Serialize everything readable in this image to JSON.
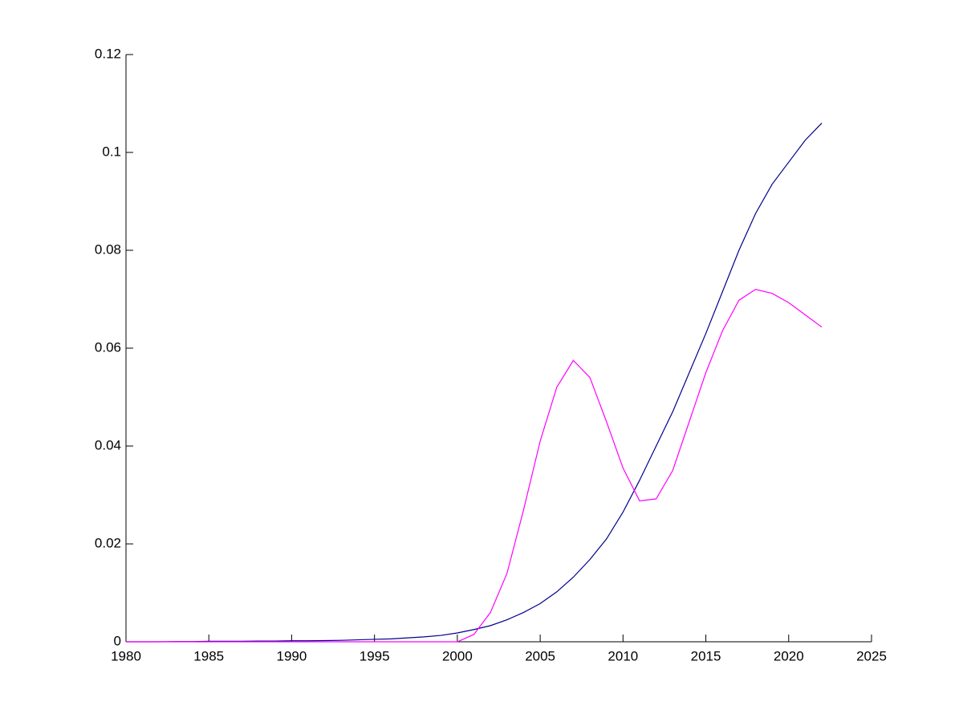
{
  "chart_data": {
    "type": "line",
    "x": [
      1980,
      1981,
      1982,
      1983,
      1984,
      1985,
      1986,
      1987,
      1988,
      1989,
      1990,
      1991,
      1992,
      1993,
      1994,
      1995,
      1996,
      1997,
      1998,
      1999,
      2000,
      2001,
      2002,
      2003,
      2004,
      2005,
      2006,
      2007,
      2008,
      2009,
      2010,
      2011,
      2012,
      2013,
      2014,
      2015,
      2016,
      2017,
      2018,
      2019,
      2020,
      2021,
      2022
    ],
    "series": [
      {
        "color": "#00008b",
        "values": [
          0,
          0,
          0,
          5e-05,
          5e-05,
          0.0001,
          0.0001,
          0.0001,
          0.00015,
          0.00015,
          0.0002,
          0.0002,
          0.00025,
          0.0003,
          0.0004,
          0.0005,
          0.0006,
          0.0008,
          0.001,
          0.0013,
          0.0018,
          0.0025,
          0.0033,
          0.0045,
          0.006,
          0.0078,
          0.0102,
          0.0132,
          0.0168,
          0.021,
          0.0265,
          0.033,
          0.04,
          0.047,
          0.055,
          0.063,
          0.0715,
          0.08,
          0.0875,
          0.0935,
          0.098,
          0.1025,
          0.106
        ]
      },
      {
        "color": "#ff00ff",
        "values": [
          0,
          0,
          0,
          0,
          0,
          0,
          0,
          0,
          0,
          0,
          0,
          0,
          0,
          0,
          0,
          0,
          0,
          0,
          0,
          0,
          0,
          0.0015,
          0.006,
          0.014,
          0.027,
          0.041,
          0.052,
          0.0575,
          0.054,
          0.045,
          0.0355,
          0.0288,
          0.0292,
          0.035,
          0.045,
          0.055,
          0.0635,
          0.0698,
          0.072,
          0.0712,
          0.0693,
          0.0668,
          0.0643
        ]
      }
    ],
    "xlim": [
      1980,
      2025
    ],
    "xticks": [
      1980,
      1985,
      1990,
      1995,
      2000,
      2005,
      2010,
      2015,
      2020,
      2025
    ],
    "ylim": [
      0,
      0.12
    ],
    "yticks": [
      0,
      0.02,
      0.04,
      0.06,
      0.08,
      0.1,
      0.12
    ]
  }
}
